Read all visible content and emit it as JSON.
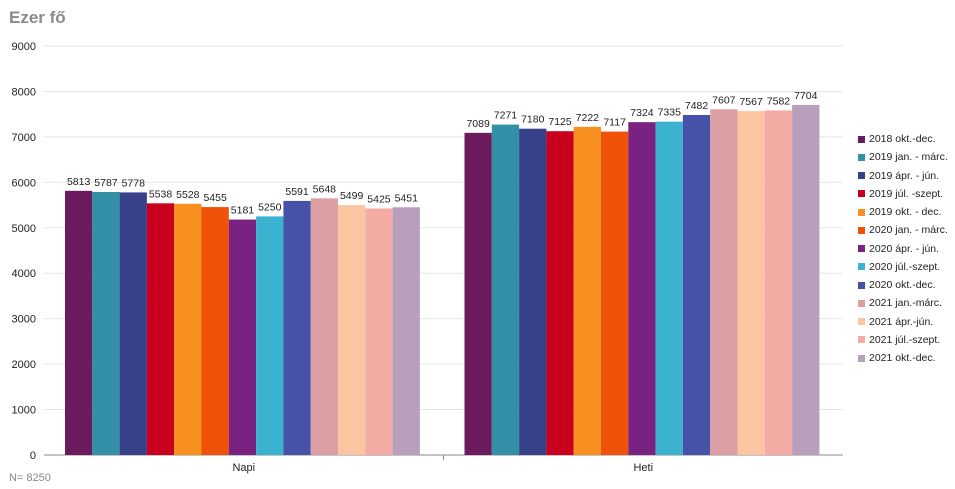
{
  "title": "Ezer fő",
  "note": "N= 8250",
  "chart_data": {
    "type": "bar",
    "categories": [
      "Napi",
      "Heti"
    ],
    "ylim": [
      0,
      9000
    ],
    "yticks": [
      0,
      1000,
      2000,
      3000,
      4000,
      5000,
      6000,
      7000,
      8000,
      9000
    ],
    "grid": true,
    "legend_position": "right",
    "series": [
      {
        "name": "2018 okt.-dec.",
        "color": "#6b1a5e",
        "values": [
          5813,
          7089
        ]
      },
      {
        "name": "2019 jan. - márc.",
        "color": "#3490a6",
        "values": [
          5787,
          7271
        ]
      },
      {
        "name": "2019 ápr. - jún.",
        "color": "#37418a",
        "values": [
          5778,
          7180
        ]
      },
      {
        "name": "2019 júl. -szept.",
        "color": "#c8001e",
        "values": [
          5538,
          7125
        ]
      },
      {
        "name": "2019 okt. - dec.",
        "color": "#f7901e",
        "values": [
          5528,
          7222
        ]
      },
      {
        "name": "2020 jan. - márc.",
        "color": "#ef5208",
        "values": [
          5455,
          7117
        ]
      },
      {
        "name": "2020 ápr. - jún.",
        "color": "#7a2282",
        "values": [
          5181,
          7324
        ]
      },
      {
        "name": "2020 júl.-szept.",
        "color": "#3bb2d0",
        "values": [
          5250,
          7335
        ]
      },
      {
        "name": "2020 okt.-dec.",
        "color": "#4552a8",
        "values": [
          5591,
          7482
        ]
      },
      {
        "name": "2021 jan.-márc.",
        "color": "#dc9fa3",
        "values": [
          5648,
          7607
        ]
      },
      {
        "name": "2021 ápr.-jún.",
        "color": "#fac5a0",
        "values": [
          5499,
          7567
        ]
      },
      {
        "name": "2021 júl.-szept.",
        "color": "#f4aba3",
        "values": [
          5425,
          7582
        ]
      },
      {
        "name": "2021 okt.-dec.",
        "color": "#b8a0bc",
        "values": [
          5451,
          7704
        ]
      }
    ]
  }
}
